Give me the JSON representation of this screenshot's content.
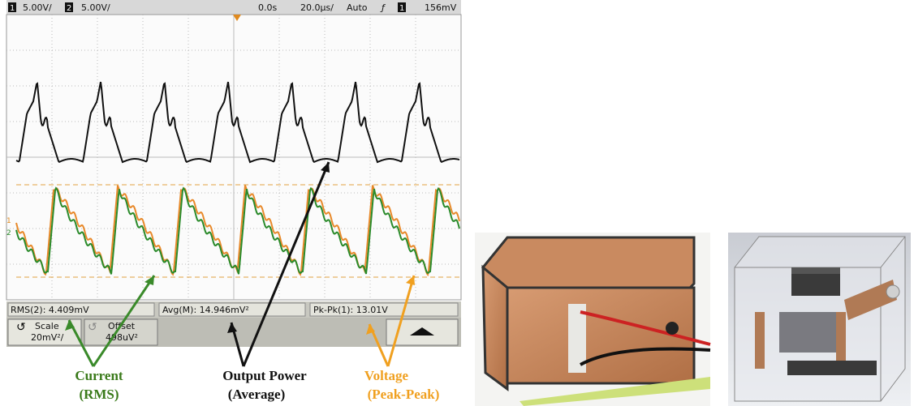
{
  "scope": {
    "header": {
      "ch1": "1",
      "ch1_scale": "5.00V/",
      "ch2": "2",
      "ch2_scale": "5.00V/",
      "delay": "0.0s",
      "timebase": "20.0µs/",
      "trigger_mode": "Auto",
      "trigger_channel": "1",
      "trigger_level": "156mV"
    },
    "trace_markers": [
      "1",
      "2"
    ],
    "measurements": [
      "RMS(2): 4.409mV",
      "Avg(M): 14.946mV²",
      "Pk-Pk(1): 13.01V"
    ],
    "softkeys": {
      "scale_label": "Scale",
      "scale_value": "20mV²/",
      "offset_label": "Offset",
      "offset_value": "498uV²"
    }
  },
  "annotations": [
    {
      "title": "Current",
      "subtitle": "(RMS)"
    },
    {
      "title": "Output Power",
      "subtitle": "(Average)"
    },
    {
      "title": "Voltage",
      "subtitle": "(Peak-Peak)"
    }
  ]
}
